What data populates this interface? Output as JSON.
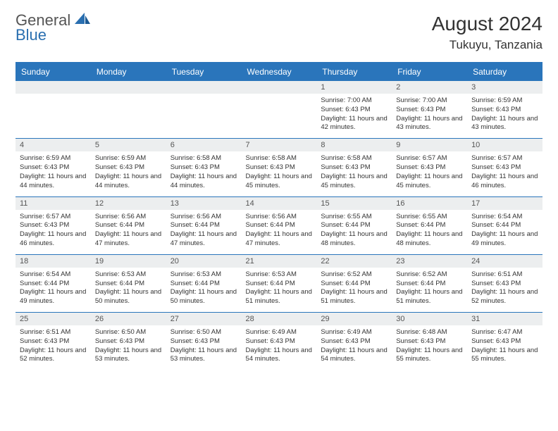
{
  "logo": {
    "line1": "General",
    "line2": "Blue"
  },
  "title": "August 2024",
  "location": "Tukuyu, Tanzania",
  "colors": {
    "header_bg": "#2a75bb",
    "header_text": "#ffffff",
    "daynum_bg": "#eceeef",
    "border": "#2a75bb",
    "logo_gray": "#555555",
    "logo_blue": "#2a6fb0"
  },
  "day_headers": [
    "Sunday",
    "Monday",
    "Tuesday",
    "Wednesday",
    "Thursday",
    "Friday",
    "Saturday"
  ],
  "weeks": [
    [
      {
        "num": "",
        "sunrise": "",
        "sunset": "",
        "daylight": ""
      },
      {
        "num": "",
        "sunrise": "",
        "sunset": "",
        "daylight": ""
      },
      {
        "num": "",
        "sunrise": "",
        "sunset": "",
        "daylight": ""
      },
      {
        "num": "",
        "sunrise": "",
        "sunset": "",
        "daylight": ""
      },
      {
        "num": "1",
        "sunrise": "Sunrise: 7:00 AM",
        "sunset": "Sunset: 6:43 PM",
        "daylight": "Daylight: 11 hours and 42 minutes."
      },
      {
        "num": "2",
        "sunrise": "Sunrise: 7:00 AM",
        "sunset": "Sunset: 6:43 PM",
        "daylight": "Daylight: 11 hours and 43 minutes."
      },
      {
        "num": "3",
        "sunrise": "Sunrise: 6:59 AM",
        "sunset": "Sunset: 6:43 PM",
        "daylight": "Daylight: 11 hours and 43 minutes."
      }
    ],
    [
      {
        "num": "4",
        "sunrise": "Sunrise: 6:59 AM",
        "sunset": "Sunset: 6:43 PM",
        "daylight": "Daylight: 11 hours and 44 minutes."
      },
      {
        "num": "5",
        "sunrise": "Sunrise: 6:59 AM",
        "sunset": "Sunset: 6:43 PM",
        "daylight": "Daylight: 11 hours and 44 minutes."
      },
      {
        "num": "6",
        "sunrise": "Sunrise: 6:58 AM",
        "sunset": "Sunset: 6:43 PM",
        "daylight": "Daylight: 11 hours and 44 minutes."
      },
      {
        "num": "7",
        "sunrise": "Sunrise: 6:58 AM",
        "sunset": "Sunset: 6:43 PM",
        "daylight": "Daylight: 11 hours and 45 minutes."
      },
      {
        "num": "8",
        "sunrise": "Sunrise: 6:58 AM",
        "sunset": "Sunset: 6:43 PM",
        "daylight": "Daylight: 11 hours and 45 minutes."
      },
      {
        "num": "9",
        "sunrise": "Sunrise: 6:57 AM",
        "sunset": "Sunset: 6:43 PM",
        "daylight": "Daylight: 11 hours and 45 minutes."
      },
      {
        "num": "10",
        "sunrise": "Sunrise: 6:57 AM",
        "sunset": "Sunset: 6:43 PM",
        "daylight": "Daylight: 11 hours and 46 minutes."
      }
    ],
    [
      {
        "num": "11",
        "sunrise": "Sunrise: 6:57 AM",
        "sunset": "Sunset: 6:43 PM",
        "daylight": "Daylight: 11 hours and 46 minutes."
      },
      {
        "num": "12",
        "sunrise": "Sunrise: 6:56 AM",
        "sunset": "Sunset: 6:44 PM",
        "daylight": "Daylight: 11 hours and 47 minutes."
      },
      {
        "num": "13",
        "sunrise": "Sunrise: 6:56 AM",
        "sunset": "Sunset: 6:44 PM",
        "daylight": "Daylight: 11 hours and 47 minutes."
      },
      {
        "num": "14",
        "sunrise": "Sunrise: 6:56 AM",
        "sunset": "Sunset: 6:44 PM",
        "daylight": "Daylight: 11 hours and 47 minutes."
      },
      {
        "num": "15",
        "sunrise": "Sunrise: 6:55 AM",
        "sunset": "Sunset: 6:44 PM",
        "daylight": "Daylight: 11 hours and 48 minutes."
      },
      {
        "num": "16",
        "sunrise": "Sunrise: 6:55 AM",
        "sunset": "Sunset: 6:44 PM",
        "daylight": "Daylight: 11 hours and 48 minutes."
      },
      {
        "num": "17",
        "sunrise": "Sunrise: 6:54 AM",
        "sunset": "Sunset: 6:44 PM",
        "daylight": "Daylight: 11 hours and 49 minutes."
      }
    ],
    [
      {
        "num": "18",
        "sunrise": "Sunrise: 6:54 AM",
        "sunset": "Sunset: 6:44 PM",
        "daylight": "Daylight: 11 hours and 49 minutes."
      },
      {
        "num": "19",
        "sunrise": "Sunrise: 6:53 AM",
        "sunset": "Sunset: 6:44 PM",
        "daylight": "Daylight: 11 hours and 50 minutes."
      },
      {
        "num": "20",
        "sunrise": "Sunrise: 6:53 AM",
        "sunset": "Sunset: 6:44 PM",
        "daylight": "Daylight: 11 hours and 50 minutes."
      },
      {
        "num": "21",
        "sunrise": "Sunrise: 6:53 AM",
        "sunset": "Sunset: 6:44 PM",
        "daylight": "Daylight: 11 hours and 51 minutes."
      },
      {
        "num": "22",
        "sunrise": "Sunrise: 6:52 AM",
        "sunset": "Sunset: 6:44 PM",
        "daylight": "Daylight: 11 hours and 51 minutes."
      },
      {
        "num": "23",
        "sunrise": "Sunrise: 6:52 AM",
        "sunset": "Sunset: 6:44 PM",
        "daylight": "Daylight: 11 hours and 51 minutes."
      },
      {
        "num": "24",
        "sunrise": "Sunrise: 6:51 AM",
        "sunset": "Sunset: 6:43 PM",
        "daylight": "Daylight: 11 hours and 52 minutes."
      }
    ],
    [
      {
        "num": "25",
        "sunrise": "Sunrise: 6:51 AM",
        "sunset": "Sunset: 6:43 PM",
        "daylight": "Daylight: 11 hours and 52 minutes."
      },
      {
        "num": "26",
        "sunrise": "Sunrise: 6:50 AM",
        "sunset": "Sunset: 6:43 PM",
        "daylight": "Daylight: 11 hours and 53 minutes."
      },
      {
        "num": "27",
        "sunrise": "Sunrise: 6:50 AM",
        "sunset": "Sunset: 6:43 PM",
        "daylight": "Daylight: 11 hours and 53 minutes."
      },
      {
        "num": "28",
        "sunrise": "Sunrise: 6:49 AM",
        "sunset": "Sunset: 6:43 PM",
        "daylight": "Daylight: 11 hours and 54 minutes."
      },
      {
        "num": "29",
        "sunrise": "Sunrise: 6:49 AM",
        "sunset": "Sunset: 6:43 PM",
        "daylight": "Daylight: 11 hours and 54 minutes."
      },
      {
        "num": "30",
        "sunrise": "Sunrise: 6:48 AM",
        "sunset": "Sunset: 6:43 PM",
        "daylight": "Daylight: 11 hours and 55 minutes."
      },
      {
        "num": "31",
        "sunrise": "Sunrise: 6:47 AM",
        "sunset": "Sunset: 6:43 PM",
        "daylight": "Daylight: 11 hours and 55 minutes."
      }
    ]
  ]
}
